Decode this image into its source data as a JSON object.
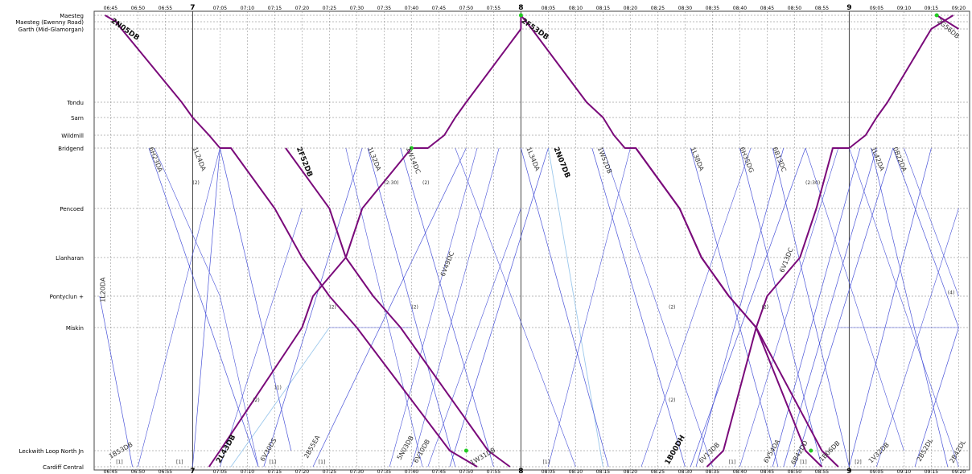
{
  "stations": [
    {
      "name": "Maesteg"
    },
    {
      "name": "Maesteg (Ewenny Road)"
    },
    {
      "name": "Garth (Mid-Glamorgan)"
    },
    {
      "name": "Tondu"
    },
    {
      "name": "Sarn"
    },
    {
      "name": "Wildmill"
    },
    {
      "name": "Bridgend"
    },
    {
      "name": "Pencoed"
    },
    {
      "name": "Llanharan"
    },
    {
      "name": "Pontyclun +"
    },
    {
      "name": "Miskin"
    },
    {
      "name": "Leckwith Loop North Jn"
    },
    {
      "name": "Cardiff Central"
    }
  ],
  "time_labels": [
    "06:45",
    "06:50",
    "06:55",
    "7",
    "07:05",
    "07:10",
    "07:15",
    "07:20",
    "07:25",
    "07:30",
    "07:35",
    "07:40",
    "07:45",
    "07:50",
    "07:55",
    "8",
    "08:05",
    "08:10",
    "08:15",
    "08:20",
    "08:25",
    "08:30",
    "08:35",
    "08:40",
    "08:45",
    "08:50",
    "08:55",
    "9",
    "09:05",
    "09:10",
    "09:15",
    "09:20"
  ],
  "colors": {
    "highlight": "#7a0a7a",
    "service": "#4a54d8",
    "light": "#9cc8ec",
    "grid": "#888888"
  },
  "highlight_trains": [
    {
      "headcode": "2N05DB",
      "points": [
        [
          "06:44",
          0
        ],
        [
          "06:46",
          1
        ],
        [
          "06:47",
          2
        ],
        [
          "06:58",
          3
        ],
        [
          "07:00",
          4
        ],
        [
          "07:03",
          5
        ],
        [
          "07:05",
          6
        ],
        [
          "07:07",
          6
        ],
        [
          "07:15",
          7
        ],
        [
          "07:20",
          8
        ],
        [
          "07:25",
          9
        ],
        [
          "07:30",
          10
        ],
        [
          "07:47",
          11
        ],
        [
          "07:52",
          12
        ]
      ]
    },
    {
      "headcode": "2F52DB",
      "points": [
        [
          "07:17",
          6
        ],
        [
          "07:25",
          7
        ],
        [
          "07:28",
          8
        ],
        [
          "07:33",
          9
        ],
        [
          "07:38",
          10
        ],
        [
          "07:54",
          11
        ],
        [
          "07:58",
          12
        ]
      ]
    },
    {
      "headcode": "2L43DB",
      "points": [
        [
          "07:03",
          12
        ],
        [
          "07:05",
          11
        ],
        [
          "07:20",
          10
        ],
        [
          "07:22",
          9
        ],
        [
          "07:28",
          8
        ],
        [
          "07:31",
          7
        ],
        [
          "07:40",
          6
        ],
        [
          "07:43",
          6
        ],
        [
          "07:46",
          5
        ],
        [
          "07:48",
          4
        ],
        [
          "07:50",
          3
        ],
        [
          "08:00",
          2
        ],
        [
          "08:00",
          0
        ]
      ]
    },
    {
      "headcode": "2F53DB",
      "points": [
        [
          "08:00",
          0
        ],
        [
          "08:02",
          2
        ],
        [
          "08:12",
          3
        ],
        [
          "08:15",
          4
        ],
        [
          "08:17",
          5
        ],
        [
          "08:19",
          6
        ],
        [
          "08:21",
          6
        ],
        [
          "08:29",
          7
        ],
        [
          "08:33",
          8
        ],
        [
          "08:38",
          9
        ],
        [
          "08:43",
          10
        ],
        [
          "08:55",
          11
        ],
        [
          "08:58",
          12
        ]
      ]
    },
    {
      "headcode": "1B00DH",
      "points": [
        [
          "08:34",
          12
        ],
        [
          "08:37",
          11
        ],
        [
          "08:43",
          10
        ],
        [
          "08:45",
          9
        ],
        [
          "08:51",
          8
        ],
        [
          "08:54",
          7
        ],
        [
          "08:57",
          6
        ],
        [
          "09:00",
          6
        ],
        [
          "09:03",
          5
        ],
        [
          "09:05",
          4
        ],
        [
          "09:07",
          3
        ],
        [
          "09:15",
          2
        ],
        [
          "09:19",
          0
        ]
      ]
    },
    {
      "headcode": "2N07DB",
      "points": [
        [
          "08:21",
          6
        ],
        [
          "08:29",
          7
        ],
        [
          "08:33",
          8
        ],
        [
          "08:38",
          9
        ],
        [
          "08:43",
          10
        ],
        [
          "08:52",
          11
        ],
        [
          "08:55",
          12
        ]
      ]
    },
    {
      "headcode": "2G56DB",
      "points": [
        [
          "09:16",
          0
        ],
        [
          "09:20",
          2
        ]
      ]
    }
  ],
  "services": [
    {
      "headcode": "6H23DA",
      "points": [
        [
          "06:52",
          6
        ],
        [
          "07:12",
          12
        ]
      ]
    },
    {
      "headcode": "1L24DA",
      "points": [
        [
          "07:00",
          12
        ],
        [
          "07:05",
          6
        ],
        [
          "07:18",
          11
        ]
      ]
    },
    {
      "headcode": "1L32DA",
      "points": [
        [
          "07:32",
          6
        ],
        [
          "07:48",
          12
        ]
      ]
    },
    {
      "headcode": "1W14DC",
      "points": [
        [
          "07:38",
          6
        ],
        [
          "07:55",
          12
        ]
      ]
    },
    {
      "headcode": "6V49DC",
      "points": [
        [
          "07:22",
          12
        ],
        [
          "07:50",
          6
        ]
      ]
    },
    {
      "headcode": "1L34DA",
      "points": [
        [
          "08:00",
          6
        ],
        [
          "08:16",
          12
        ]
      ]
    },
    {
      "headcode": "1W52DB",
      "points": [
        [
          "08:13",
          6
        ],
        [
          "08:30",
          12
        ]
      ]
    },
    {
      "headcode": "1L38DA",
      "points": [
        [
          "08:31",
          6
        ],
        [
          "08:47",
          12
        ]
      ]
    },
    {
      "headcode": "6H35DG",
      "points": [
        [
          "08:40",
          6
        ],
        [
          "08:55",
          12
        ]
      ]
    },
    {
      "headcode": "6B13DC",
      "points": [
        [
          "08:46",
          6
        ],
        [
          "09:00",
          12
        ]
      ]
    },
    {
      "headcode": "6V13DC",
      "points": [
        [
          "08:31",
          12
        ],
        [
          "08:52",
          6
        ]
      ]
    },
    {
      "headcode": "1L42DA",
      "points": [
        [
          "09:04",
          6
        ],
        [
          "09:18",
          12
        ]
      ]
    },
    {
      "headcode": "0B22DA",
      "points": [
        [
          "09:08",
          6
        ],
        [
          "09:20",
          10
        ]
      ]
    },
    {
      "headcode": "1B53DB",
      "points": [
        [
          "06:43",
          9
        ],
        [
          "06:49",
          12
        ]
      ]
    },
    {
      "headcode": "6V30DS",
      "points": [
        [
          "07:13",
          12
        ],
        [
          "07:31",
          6
        ]
      ]
    },
    {
      "headcode": "1W31DB",
      "points": [
        [
          "07:47",
          12
        ],
        [
          "08:05",
          6
        ]
      ]
    },
    {
      "headcode": "1B06DB",
      "points": [
        [
          "08:48",
          12
        ],
        [
          "09:05",
          6
        ]
      ]
    },
    {
      "headcode": "1V32DB",
      "points": [
        [
          "09:00",
          12
        ],
        [
          "09:15",
          6
        ]
      ]
    },
    {
      "headcode": "6B42DD",
      "points": [
        [
          "08:50",
          12
        ],
        [
          "09:08",
          6
        ]
      ]
    },
    {
      "headcode": "6V54DA",
      "points": [
        [
          "08:46",
          12
        ],
        [
          "09:02",
          6
        ]
      ]
    },
    {
      "headcode": "6V13DB",
      "points": [
        [
          "08:32",
          12
        ],
        [
          "08:48",
          6
        ]
      ]
    },
    {
      "headcode": "2B52DL",
      "points": [
        [
          "09:12",
          12
        ],
        [
          "09:20",
          10
        ]
      ]
    }
  ],
  "extra_lines": [
    {
      "points": [
        [
          "06:50",
          12
        ],
        [
          "07:05",
          6
        ]
      ]
    },
    {
      "points": [
        [
          "07:05",
          12
        ],
        [
          "07:20",
          7
        ]
      ]
    },
    {
      "points": [
        [
          "07:28",
          6
        ],
        [
          "07:42",
          12
        ]
      ]
    },
    {
      "points": [
        [
          "07:40",
          12
        ],
        [
          "07:56",
          6
        ]
      ]
    },
    {
      "points": [
        [
          "07:43",
          12
        ],
        [
          "08:00",
          7
        ]
      ]
    },
    {
      "points": [
        [
          "07:36",
          12
        ],
        [
          "07:52",
          6
        ]
      ]
    },
    {
      "points": [
        [
          "08:05",
          12
        ],
        [
          "08:20",
          6
        ]
      ]
    },
    {
      "points": [
        [
          "08:15",
          6
        ],
        [
          "08:35",
          12
        ]
      ]
    },
    {
      "points": [
        [
          "08:22",
          12
        ],
        [
          "08:42",
          6
        ]
      ]
    },
    {
      "points": [
        [
          "08:40",
          12
        ],
        [
          "08:58",
          6
        ]
      ]
    },
    {
      "points": [
        [
          "09:00",
          6
        ],
        [
          "09:20",
          12
        ]
      ]
    },
    {
      "points": [
        [
          "09:05",
          12
        ],
        [
          "09:20",
          7
        ]
      ]
    },
    {
      "points": [
        [
          "09:10",
          6
        ],
        [
          "09:20",
          9
        ]
      ]
    },
    {
      "points": [
        [
          "08:52",
          6
        ],
        [
          "09:10",
          11
        ]
      ]
    },
    {
      "points": [
        [
          "07:25",
          10
        ],
        [
          "07:40",
          10
        ]
      ]
    },
    {
      "points": [
        [
          "08:58",
          10
        ],
        [
          "09:20",
          10
        ]
      ]
    },
    {
      "points": [
        [
          "07:48",
          6
        ],
        [
          "08:10",
          12
        ]
      ]
    },
    {
      "points": [
        [
          "06:53",
          6
        ],
        [
          "07:05",
          9
        ]
      ]
    },
    {
      "points": [
        [
          "07:05",
          9
        ],
        [
          "07:12",
          12
        ]
      ]
    }
  ],
  "light_lines": [
    {
      "points": [
        [
          "07:07",
          12
        ],
        [
          "07:25",
          10
        ]
      ]
    },
    {
      "points": [
        [
          "08:05",
          6
        ],
        [
          "08:15",
          12
        ]
      ]
    }
  ],
  "train_labels": [
    {
      "text": "2N05DB",
      "bold": true,
      "time": "06:45",
      "station": 1,
      "angle": 35
    },
    {
      "text": "2F53DB",
      "bold": true,
      "time": "08:00",
      "station": 1,
      "angle": 35
    },
    {
      "text": "2G56DB",
      "bold": false,
      "time": "09:16",
      "station": 1,
      "angle": 40
    },
    {
      "text": "6H23DA",
      "bold": false,
      "time": "06:52",
      "station": 6,
      "angle": 68
    },
    {
      "text": "1L24DA",
      "bold": false,
      "time": "07:00",
      "station": 6,
      "angle": 68
    },
    {
      "text": "2F52DB",
      "bold": true,
      "time": "07:19",
      "station": 6,
      "angle": 68
    },
    {
      "text": "1L32DA",
      "bold": false,
      "time": "07:32",
      "station": 6,
      "angle": 68
    },
    {
      "text": "1W14DC",
      "bold": false,
      "time": "07:39",
      "station": 6,
      "angle": 68
    },
    {
      "text": "1L34DA",
      "bold": false,
      "time": "08:01",
      "station": 6,
      "angle": 68
    },
    {
      "text": "2N07DB",
      "bold": true,
      "time": "08:06",
      "station": 6,
      "angle": 68
    },
    {
      "text": "1W52DB",
      "bold": false,
      "time": "08:14",
      "station": 6,
      "angle": 68
    },
    {
      "text": "1L38DA",
      "bold": false,
      "time": "08:31",
      "station": 6,
      "angle": 68
    },
    {
      "text": "6H35DG",
      "bold": false,
      "time": "08:40",
      "station": 6,
      "angle": 68
    },
    {
      "text": "6B13DC",
      "bold": false,
      "time": "08:46",
      "station": 6,
      "angle": 68
    },
    {
      "text": "1L42DA",
      "bold": false,
      "time": "09:04",
      "station": 6,
      "angle": 68
    },
    {
      "text": "0B22DA",
      "bold": false,
      "time": "09:08",
      "station": 6,
      "angle": 68
    },
    {
      "text": "6V49DC",
      "bold": false,
      "time": "07:46",
      "station": 8.5,
      "angle": -68
    },
    {
      "text": "6V13DC",
      "bold": false,
      "time": "08:48",
      "station": 8.4,
      "angle": -68
    },
    {
      "text": "1B53DB",
      "bold": false,
      "time": "06:45",
      "station": 11.5,
      "angle": -30
    },
    {
      "text": "2L43DB",
      "bold": true,
      "time": "07:05",
      "station": 11.8,
      "angle": -60
    },
    {
      "text": "6V30DS",
      "bold": false,
      "time": "07:13",
      "station": 11.7,
      "angle": -60
    },
    {
      "text": "2B55EA",
      "bold": false,
      "time": "07:21",
      "station": 11.5,
      "angle": -60
    },
    {
      "text": "5N03DB",
      "bold": false,
      "time": "07:38",
      "station": 11.6,
      "angle": -60
    },
    {
      "text": "6V10DB",
      "bold": false,
      "time": "07:41",
      "station": 11.8,
      "angle": -60
    },
    {
      "text": "1W31DB",
      "bold": false,
      "time": "07:51",
      "station": 11.9,
      "angle": -30
    },
    {
      "text": "1B00DH",
      "bold": true,
      "time": "08:27",
      "station": 11.9,
      "angle": -60
    },
    {
      "text": "6V13DB",
      "bold": false,
      "time": "08:33",
      "station": 11.8,
      "angle": -45
    },
    {
      "text": "6V54DA",
      "bold": false,
      "time": "08:45",
      "station": 11.8,
      "angle": -60
    },
    {
      "text": "6B42DD",
      "bold": false,
      "time": "08:50",
      "station": 11.9,
      "angle": -60
    },
    {
      "text": "1B06DB",
      "bold": false,
      "time": "08:55",
      "station": 11.7,
      "angle": -45
    },
    {
      "text": "1V32DB",
      "bold": false,
      "time": "09:04",
      "station": 11.8,
      "angle": -45
    },
    {
      "text": "2B52DL",
      "bold": false,
      "time": "09:13",
      "station": 11.7,
      "angle": -60
    },
    {
      "text": "2B42DL",
      "bold": false,
      "time": "09:19",
      "station": 11.8,
      "angle": -60
    },
    {
      "text": "1L20DA",
      "bold": false,
      "time": "06:44",
      "station": 9.2,
      "angle": -90
    }
  ],
  "notes": [
    {
      "text": "(2)",
      "time": "07:00",
      "station": 6.6
    },
    {
      "text": "(2)",
      "time": "07:25",
      "station": 9.4
    },
    {
      "text": "(2)",
      "time": "07:40",
      "station": 9.4
    },
    {
      "text": "(2)",
      "time": "07:11",
      "station": 10.6
    },
    {
      "text": "(2)",
      "time": "08:27",
      "station": 9.4
    },
    {
      "text": "(2)",
      "time": "08:44",
      "station": 9.4
    },
    {
      "text": "(2)",
      "time": "08:27",
      "station": 10.6
    },
    {
      "text": "(2:30)",
      "time": "07:35",
      "station": 6.6
    },
    {
      "text": "(2:30)",
      "time": "08:52",
      "station": 6.6
    },
    {
      "text": "(2)",
      "time": "07:42",
      "station": 6.6
    },
    {
      "text": "(1)",
      "time": "07:15",
      "station": 10.5
    },
    {
      "text": "(4)",
      "time": "09:18",
      "station": 8.95
    },
    {
      "text": "[1]",
      "time": "06:46",
      "station": 11.8
    },
    {
      "text": "[1]",
      "time": "06:57",
      "station": 11.8
    },
    {
      "text": "[1]",
      "time": "07:14",
      "station": 11.8
    },
    {
      "text": "[1]",
      "time": "07:23",
      "station": 11.8
    },
    {
      "text": "[1]",
      "time": "08:04",
      "station": 11.8
    },
    {
      "text": "[1]",
      "time": "08:38",
      "station": 11.8
    },
    {
      "text": "[1]",
      "time": "08:51",
      "station": 11.8
    },
    {
      "text": "[2]",
      "time": "09:01",
      "station": 11.8
    }
  ]
}
